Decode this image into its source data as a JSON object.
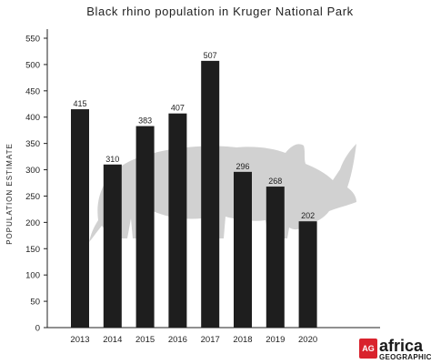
{
  "chart_data": {
    "type": "bar",
    "title": "Black rhino population in Kruger National Park",
    "xlabel": "",
    "ylabel": "POPULATION ESTIMATE",
    "categories": [
      "2013",
      "2014",
      "2015",
      "2016",
      "2017",
      "2018",
      "2019",
      "2020"
    ],
    "values": [
      415,
      310,
      383,
      407,
      507,
      296,
      268,
      202
    ],
    "ylim": [
      0,
      550
    ],
    "yticks": [
      0,
      50,
      100,
      150,
      200,
      250,
      300,
      350,
      400,
      450,
      500,
      550
    ],
    "grid": false,
    "bar_color": "#1e1e1e",
    "watermark": "rhino-silhouette"
  },
  "logo": {
    "badge": "AG",
    "name": "africa",
    "sub": "GEOGRAPHIC",
    "badge_color": "#d9232d"
  }
}
